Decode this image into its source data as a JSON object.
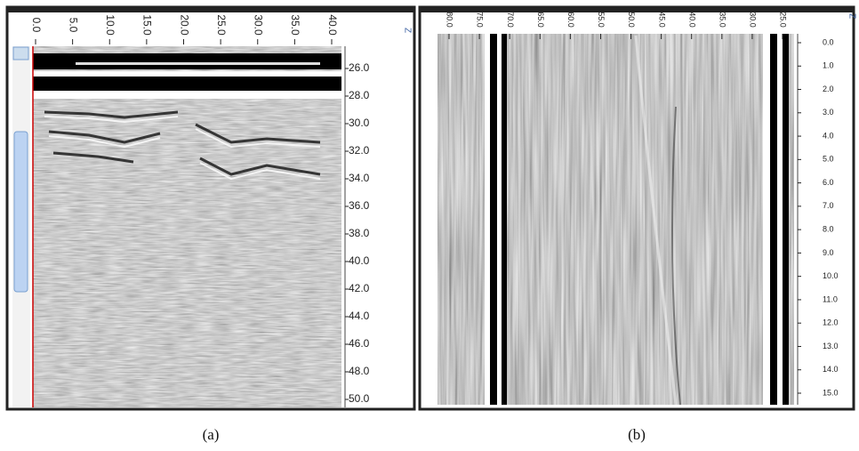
{
  "panels": [
    {
      "top_labels": [
        "0.0",
        "5.0",
        "10.0",
        "15.0",
        "20.0",
        "25.0",
        "30.0",
        "35.0",
        "40.0"
      ],
      "right_labels": [
        "26.0",
        "28.0",
        "30.0",
        "32.0",
        "34.0",
        "36.0",
        "38.0",
        "40.0",
        "42.0",
        "44.0",
        "46.0",
        "48.0",
        "50.0"
      ],
      "axis_label": "Z",
      "caption": "(a)"
    },
    {
      "top_labels": [
        "80.0",
        "75.0",
        "70.0",
        "65.0",
        "60.0",
        "55.0",
        "50.0",
        "45.0",
        "40.0",
        "35.0",
        "30.0",
        "25.0"
      ],
      "right_labels": [
        "0.0",
        "1.0",
        "2.0",
        "3.0",
        "4.0",
        "5.0",
        "6.0",
        "7.0",
        "8.0",
        "9.0",
        "10.0",
        "11.0",
        "12.0",
        "13.0",
        "14.0",
        "15.0"
      ],
      "axis_label": "Z",
      "caption": "(b)"
    }
  ]
}
